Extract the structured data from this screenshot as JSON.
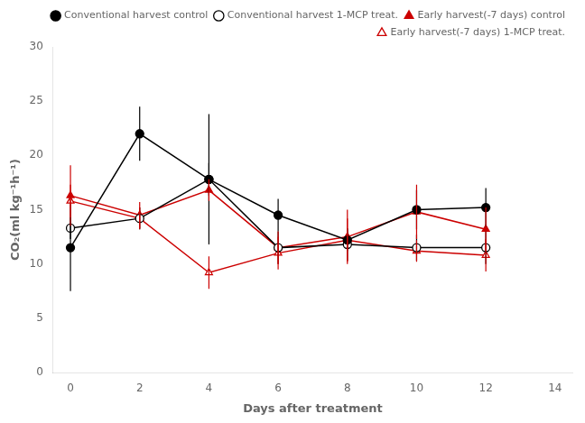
{
  "chart_data": {
    "type": "line",
    "x": [
      0,
      2,
      4,
      6,
      8,
      10,
      12
    ],
    "series": [
      {
        "name": "Conventional harvest control",
        "color": "#000000",
        "marker": "circle",
        "values": [
          11.5,
          22.0,
          17.8,
          14.5,
          12.2,
          15.0,
          15.2
        ],
        "yerr": [
          4.0,
          2.5,
          1.5,
          1.5,
          1.0,
          1.8,
          1.8
        ]
      },
      {
        "name": "Conventional harvest 1-MCP treat.",
        "color": "#000000",
        "marker": "circle_open",
        "values": [
          13.3,
          14.2,
          17.8,
          11.5,
          11.8,
          11.5,
          11.5
        ],
        "yerr": [
          1.0,
          1.0,
          6.0,
          1.5,
          1.5,
          1.2,
          1.5
        ]
      },
      {
        "name": "Early harvest(-7 days) control",
        "color": "#cc0000",
        "marker": "triangle",
        "values": [
          16.3,
          14.5,
          16.8,
          11.5,
          12.5,
          14.8,
          13.2
        ],
        "yerr": [
          2.8,
          1.2,
          1.0,
          1.5,
          2.5,
          2.5,
          2.0
        ]
      },
      {
        "name": "Early harvest(-7 days) 1-MCP treat.",
        "color": "#cc0000",
        "marker": "triangle_open",
        "values": [
          15.8,
          14.2,
          9.2,
          11.0,
          12.2,
          11.2,
          10.8
        ],
        "yerr": [
          1.5,
          1.0,
          1.5,
          1.5,
          2.0,
          1.0,
          1.5
        ]
      }
    ],
    "xlabel": "Days after treatment",
    "ylabel": "CO₂(ml kg⁻¹h⁻¹)",
    "xlim": [
      -0.5,
      14.5
    ],
    "ylim": [
      0,
      30
    ],
    "xticks": [
      0,
      2,
      4,
      6,
      8,
      10,
      12,
      14
    ],
    "yticks": [
      0,
      5,
      10,
      15,
      20,
      25,
      30
    ],
    "legend": "upper right",
    "grid": false
  }
}
